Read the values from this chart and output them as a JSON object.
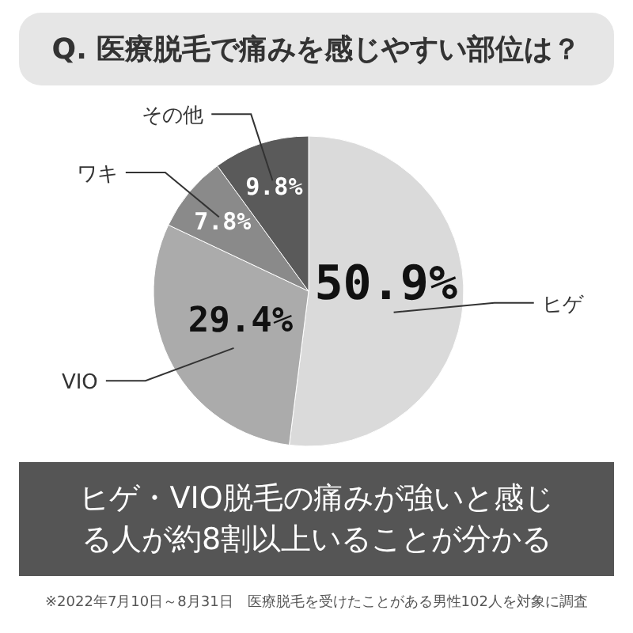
{
  "chart_data": {
    "type": "pie",
    "title": "Q. 医療脱毛で痛みを感じやすい部位は？",
    "subtitle": "ヒゲ・VIO脱毛の痛みが強いと感じる人が約8割以上いることが分かる",
    "categories": [
      "ヒゲ",
      "VIO",
      "ワキ",
      "その他"
    ],
    "values": [
      50.9,
      29.4,
      7.8,
      9.8
    ],
    "value_labels": [
      "50.9%",
      "29.4%",
      "7.8%",
      "9.8%"
    ],
    "colors": [
      "#dadada",
      "#ababab",
      "#8a8a8a",
      "#5a5a5a"
    ],
    "annotations": [
      "※2022年7月10日～8月31日　医療脱毛を受けたことがある男性102人を対象に調査"
    ]
  }
}
